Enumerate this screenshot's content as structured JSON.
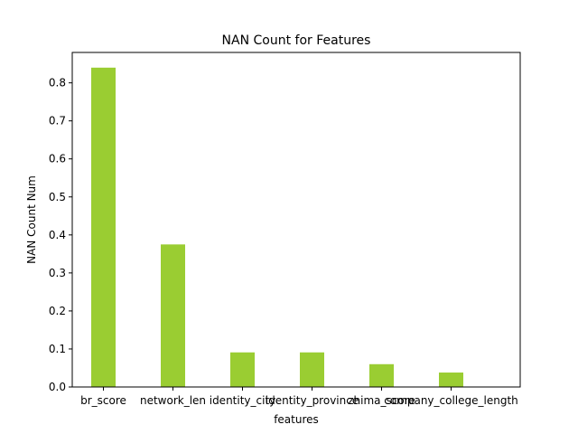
{
  "chart_data": {
    "type": "bar",
    "title": "NAN Count for Features",
    "xlabel": "features",
    "ylabel": "NAN Count Num",
    "categories": [
      "br_score",
      "network_len",
      "identity_city",
      "identity_province",
      "zhima_score",
      "company_college_length"
    ],
    "values": [
      0.84,
      0.375,
      0.091,
      0.091,
      0.06,
      0.038
    ],
    "ylim": [
      0,
      0.88
    ],
    "yticks": [
      "0.0",
      "0.1",
      "0.2",
      "0.3",
      "0.4",
      "0.5",
      "0.6",
      "0.7",
      "0.8"
    ],
    "bar_color": "#9acd32",
    "grid": false,
    "legend": "none"
  }
}
